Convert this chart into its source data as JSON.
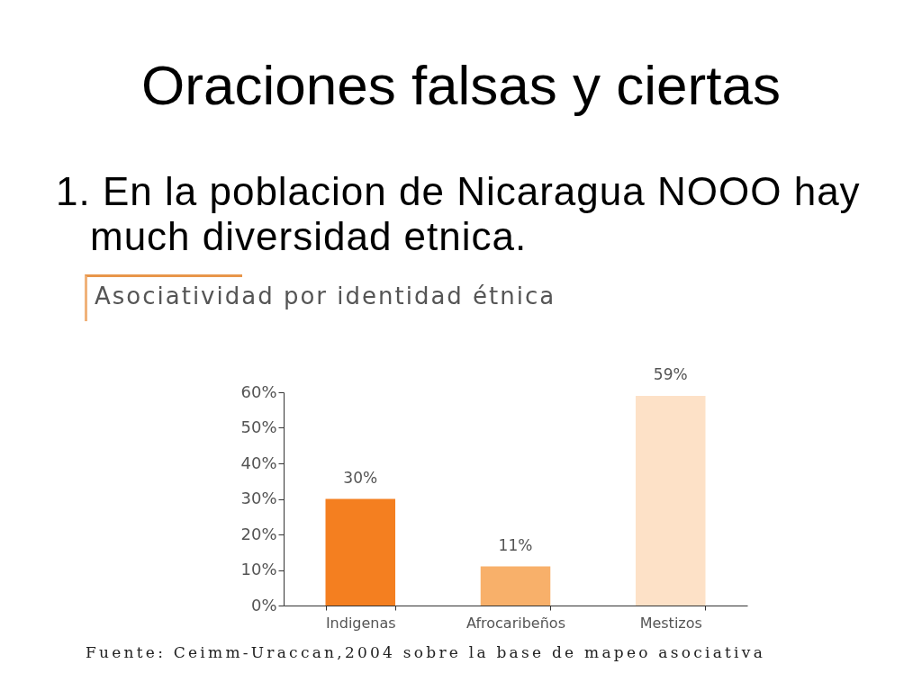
{
  "chart_data": {
    "type": "bar",
    "title": "Oraciones falsas y ciertas",
    "subtitle": "1. En la poblacion de Nicaragua NOOO hay much diversidad etnica.",
    "annotations": [
      "Asociatividad por identidad étnica",
      "Fuente: Ceimm-Uraccan,2004 sobre la base de mapeo asociativa"
    ],
    "categories": [
      "Indigenas",
      "Afrocaribeños",
      "Mestizos"
    ],
    "values": [
      30,
      11,
      59
    ],
    "colors": [
      "#f47f20",
      "#f8b06a",
      "#fde1c7"
    ],
    "value_labels": [
      "30%",
      "11%",
      "59%"
    ],
    "ylim": [
      0,
      60
    ],
    "yticks": [
      {
        "value": 0,
        "label": "0%"
      },
      {
        "value": 10,
        "label": "10%"
      },
      {
        "value": 20,
        "label": "20%"
      },
      {
        "value": 30,
        "label": "30%"
      },
      {
        "value": 40,
        "label": "40%"
      },
      {
        "value": 50,
        "label": "50%"
      },
      {
        "value": 60,
        "label": "60%"
      }
    ]
  }
}
